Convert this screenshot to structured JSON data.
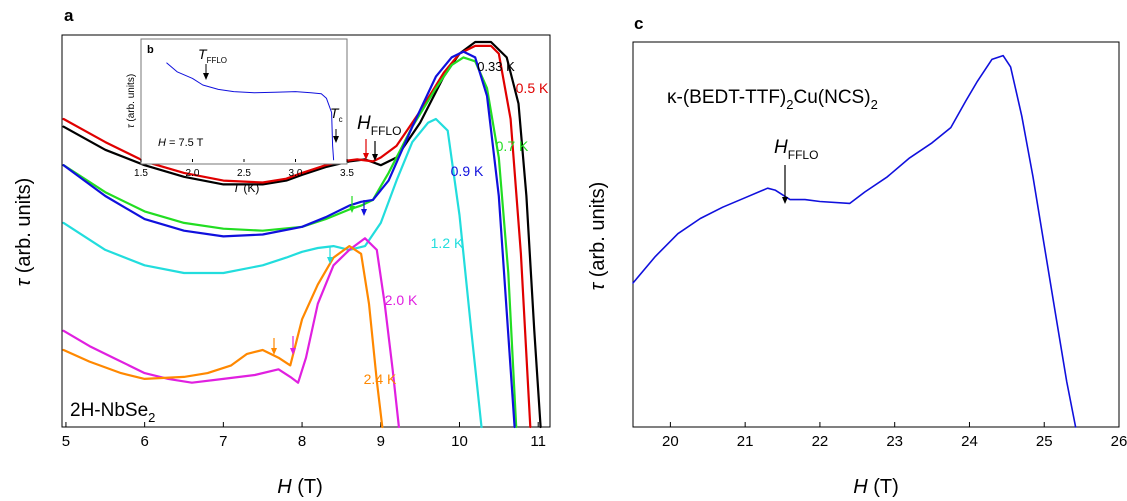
{
  "chart_data": [
    {
      "panel_label": "a",
      "type": "line",
      "xlabel": "H (T)",
      "ylabel": "τ (arb. units)",
      "xlim": [
        4.95,
        11.15
      ],
      "xticks": [
        5,
        6,
        7,
        8,
        9,
        10,
        11
      ],
      "y_ticks_shown": false,
      "grid": false,
      "annotation": "2H-NbSe₂",
      "arrow_label": "H_FFLO",
      "series": [
        {
          "name": "0.33 K",
          "color": "#000000",
          "x": [
            4.97,
            5.5,
            6.0,
            6.5,
            7.0,
            7.5,
            7.8,
            8.0,
            8.3,
            8.6,
            8.8,
            9.0,
            9.2,
            9.5,
            9.8,
            10.0,
            10.2,
            10.4,
            10.6,
            10.75,
            10.85,
            10.95,
            11.03
          ],
          "y": [
            0.78,
            0.72,
            0.68,
            0.65,
            0.63,
            0.63,
            0.64,
            0.655,
            0.675,
            0.69,
            0.695,
            0.68,
            0.7,
            0.79,
            0.91,
            0.97,
            1.0,
            1.0,
            0.96,
            0.84,
            0.6,
            0.25,
            0.0
          ]
        },
        {
          "name": "0.5 K",
          "color": "#e00000",
          "x": [
            4.97,
            5.5,
            6.0,
            6.5,
            7.0,
            7.5,
            7.8,
            8.0,
            8.3,
            8.5,
            8.7,
            8.9,
            9.0,
            9.2,
            9.5,
            9.8,
            10.0,
            10.2,
            10.4,
            10.5,
            10.65,
            10.78,
            10.9
          ],
          "y": [
            0.8,
            0.74,
            0.69,
            0.66,
            0.64,
            0.635,
            0.645,
            0.66,
            0.68,
            0.69,
            0.695,
            0.69,
            0.7,
            0.73,
            0.82,
            0.92,
            0.97,
            0.99,
            0.99,
            0.97,
            0.8,
            0.45,
            0.0
          ]
        },
        {
          "name": "0.7 K",
          "color": "#22dd22",
          "x": [
            4.97,
            5.5,
            6.0,
            6.5,
            7.0,
            7.5,
            8.0,
            8.3,
            8.6,
            8.75,
            8.9,
            9.1,
            9.4,
            9.7,
            9.9,
            10.05,
            10.2,
            10.35,
            10.5,
            10.62,
            10.72
          ],
          "y": [
            0.68,
            0.61,
            0.56,
            0.53,
            0.515,
            0.51,
            0.52,
            0.54,
            0.565,
            0.575,
            0.59,
            0.66,
            0.78,
            0.88,
            0.94,
            0.96,
            0.95,
            0.88,
            0.7,
            0.4,
            0.0
          ]
        },
        {
          "name": "0.9 K",
          "color": "#1010dd",
          "x": [
            4.97,
            5.5,
            6.0,
            6.5,
            7.0,
            7.5,
            8.0,
            8.3,
            8.6,
            8.75,
            8.9,
            9.1,
            9.4,
            9.7,
            9.9,
            10.05,
            10.2,
            10.35,
            10.5,
            10.6,
            10.7
          ],
          "y": [
            0.68,
            0.6,
            0.54,
            0.51,
            0.495,
            0.5,
            0.52,
            0.545,
            0.575,
            0.585,
            0.59,
            0.64,
            0.78,
            0.91,
            0.96,
            0.975,
            0.96,
            0.86,
            0.6,
            0.3,
            0.0
          ]
        },
        {
          "name": "1.2 K",
          "color": "#22dddd",
          "x": [
            4.97,
            5.5,
            6.0,
            6.5,
            7.0,
            7.5,
            7.8,
            8.0,
            8.2,
            8.4,
            8.6,
            8.8,
            9.0,
            9.2,
            9.4,
            9.6,
            9.7,
            9.85,
            10.0,
            10.15,
            10.28
          ],
          "y": [
            0.53,
            0.46,
            0.42,
            0.4,
            0.4,
            0.42,
            0.44,
            0.455,
            0.465,
            0.47,
            0.46,
            0.47,
            0.53,
            0.64,
            0.74,
            0.79,
            0.8,
            0.77,
            0.55,
            0.25,
            0.0
          ]
        },
        {
          "name": "2.0 K",
          "color": "#e020e0",
          "x": [
            4.97,
            5.3,
            5.6,
            6.0,
            6.3,
            6.6,
            7.0,
            7.4,
            7.7,
            7.85,
            7.95,
            8.05,
            8.2,
            8.4,
            8.6,
            8.8,
            8.95,
            9.05,
            9.15,
            9.23
          ],
          "y": [
            0.25,
            0.21,
            0.18,
            0.14,
            0.125,
            0.115,
            0.125,
            0.135,
            0.15,
            0.13,
            0.115,
            0.18,
            0.32,
            0.42,
            0.46,
            0.49,
            0.46,
            0.32,
            0.15,
            0.0
          ]
        },
        {
          "name": "2.4 K",
          "color": "#ff8800",
          "x": [
            4.97,
            5.3,
            5.7,
            6.0,
            6.5,
            6.8,
            7.1,
            7.3,
            7.5,
            7.7,
            7.85,
            8.0,
            8.2,
            8.4,
            8.6,
            8.75,
            8.85,
            8.95,
            9.02
          ],
          "y": [
            0.2,
            0.17,
            0.14,
            0.125,
            0.13,
            0.14,
            0.16,
            0.19,
            0.2,
            0.18,
            0.16,
            0.28,
            0.37,
            0.44,
            0.47,
            0.45,
            0.32,
            0.12,
            0.0
          ]
        }
      ],
      "inset": {
        "panel_label": "b",
        "type": "line",
        "xlabel": "T (K)",
        "ylabel": "τ (arb. units)",
        "xlim": [
          1.5,
          3.5
        ],
        "xticks": [
          "1.5",
          "2.0",
          "2.5",
          "3.0",
          "3.5"
        ],
        "annotation": "H = 7.5 T",
        "arrow_labels": [
          "T_FFLO",
          "T_c"
        ],
        "series": [
          {
            "color": "#1010dd",
            "x": [
              1.75,
              1.85,
              2.0,
              2.1,
              2.25,
              2.4,
              2.6,
              2.8,
              3.0,
              3.15,
              3.25,
              3.3,
              3.35,
              3.36,
              3.37
            ],
            "y": [
              0.9,
              0.82,
              0.76,
              0.7,
              0.66,
              0.64,
              0.63,
              0.635,
              0.64,
              0.63,
              0.62,
              0.58,
              0.45,
              0.15,
              0.02
            ]
          }
        ]
      }
    },
    {
      "panel_label": "c",
      "type": "line",
      "xlabel": "H (T)",
      "ylabel": "τ (arb. units)",
      "xlim": [
        19.5,
        26
      ],
      "xticks": [
        20,
        21,
        22,
        23,
        24,
        25,
        26
      ],
      "y_ticks_shown": false,
      "grid": false,
      "annotation": "κ-(BEDT-TTF)₂Cu(NCS)₂",
      "arrow_label": "H_FFLO",
      "series": [
        {
          "color": "#1010dd",
          "x": [
            19.5,
            19.8,
            20.1,
            20.4,
            20.7,
            21.0,
            21.3,
            21.4,
            21.6,
            21.8,
            22.0,
            22.4,
            22.6,
            22.9,
            23.2,
            23.5,
            23.75,
            23.95,
            24.1,
            24.3,
            24.45,
            24.55,
            24.7,
            24.85,
            25.0,
            25.15,
            25.3,
            25.42
          ],
          "y": [
            0.38,
            0.45,
            0.51,
            0.55,
            0.58,
            0.605,
            0.63,
            0.625,
            0.6,
            0.6,
            0.595,
            0.59,
            0.62,
            0.66,
            0.71,
            0.75,
            0.79,
            0.86,
            0.91,
            0.97,
            0.98,
            0.95,
            0.82,
            0.66,
            0.48,
            0.3,
            0.12,
            0.0
          ]
        }
      ]
    }
  ]
}
